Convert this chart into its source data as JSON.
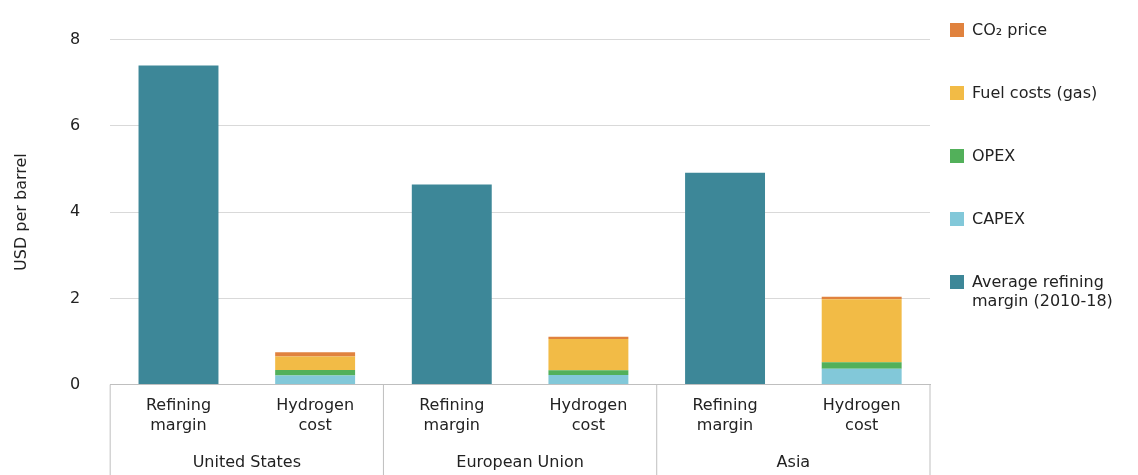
{
  "chart_data": {
    "type": "bar",
    "ylabel": "USD per barrel",
    "stacked": true,
    "categories": [
      "Refining margin",
      "Hydrogen cost",
      "Refining margin",
      "Hydrogen cost",
      "Refining margin",
      "Hydrogen cost"
    ],
    "annotations": [
      "United States",
      "European Union",
      "Asia"
    ],
    "series": [
      {
        "name": "Average refining margin (2010-18)",
        "color": "#3d8798",
        "values": [
          7.4,
          null,
          4.64,
          null,
          4.91,
          null
        ]
      },
      {
        "name": "CAPEX",
        "color": "#82c8d9",
        "values": [
          null,
          0.21,
          null,
          0.22,
          null,
          0.37
        ]
      },
      {
        "name": "OPEX",
        "color": "#52b05a",
        "values": [
          null,
          0.13,
          null,
          0.11,
          null,
          0.15
        ]
      },
      {
        "name": "Fuel costs (gas)",
        "color": "#f2bb46",
        "values": [
          null,
          0.31,
          null,
          0.73,
          null,
          1.46
        ]
      },
      {
        "name": "CO₂ price",
        "color": "#e0823e",
        "values": [
          null,
          0.1,
          null,
          0.05,
          null,
          0.06
        ]
      }
    ],
    "ylim": [
      0,
      8
    ],
    "yticks": [
      0,
      2,
      4,
      6,
      8
    ],
    "grid": "y",
    "legend": "right"
  }
}
